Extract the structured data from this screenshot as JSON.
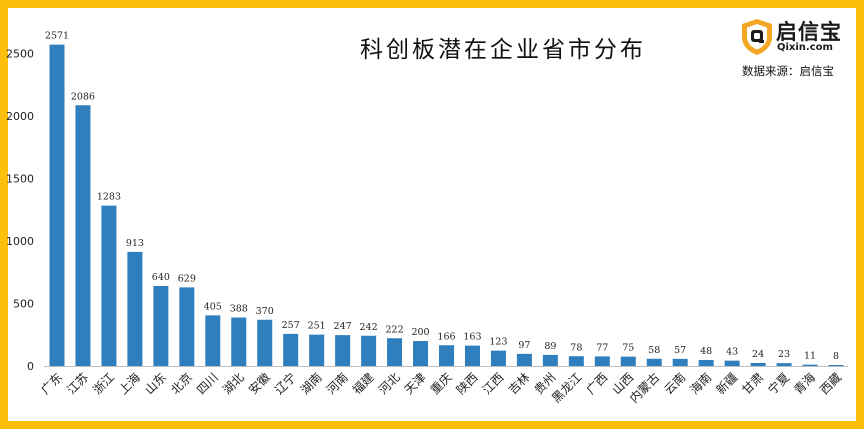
{
  "logo": {
    "name": "启信宝",
    "domain": "Qixin.com",
    "brand_color": "#f5a623",
    "icon": "shield-q-logo-icon"
  },
  "source_text": "数据来源：启信宝",
  "colors": {
    "bar": "#2f7ebd",
    "frame": "#fbbf0c"
  },
  "chart_data": {
    "type": "bar",
    "title": "科创板潜在企业省市分布",
    "xlabel": "",
    "ylabel": "",
    "ylim": [
      0,
      2600
    ],
    "yticks": [
      0,
      500,
      1000,
      1500,
      2000,
      2500
    ],
    "grid": false,
    "categories": [
      "广东",
      "江苏",
      "浙江",
      "上海",
      "山东",
      "北京",
      "四川",
      "湖北",
      "安徽",
      "辽宁",
      "湖南",
      "河南",
      "福建",
      "河北",
      "天津",
      "重庆",
      "陕西",
      "江西",
      "吉林",
      "贵州",
      "黑龙江",
      "广西",
      "山西",
      "内蒙古",
      "云南",
      "海南",
      "新疆",
      "甘肃",
      "宁夏",
      "青海",
      "西藏"
    ],
    "values": [
      2571,
      2086,
      1283,
      913,
      640,
      629,
      405,
      388,
      370,
      257,
      251,
      247,
      242,
      222,
      200,
      166,
      163,
      123,
      97,
      89,
      78,
      77,
      75,
      58,
      57,
      48,
      43,
      24,
      23,
      11,
      8
    ]
  }
}
